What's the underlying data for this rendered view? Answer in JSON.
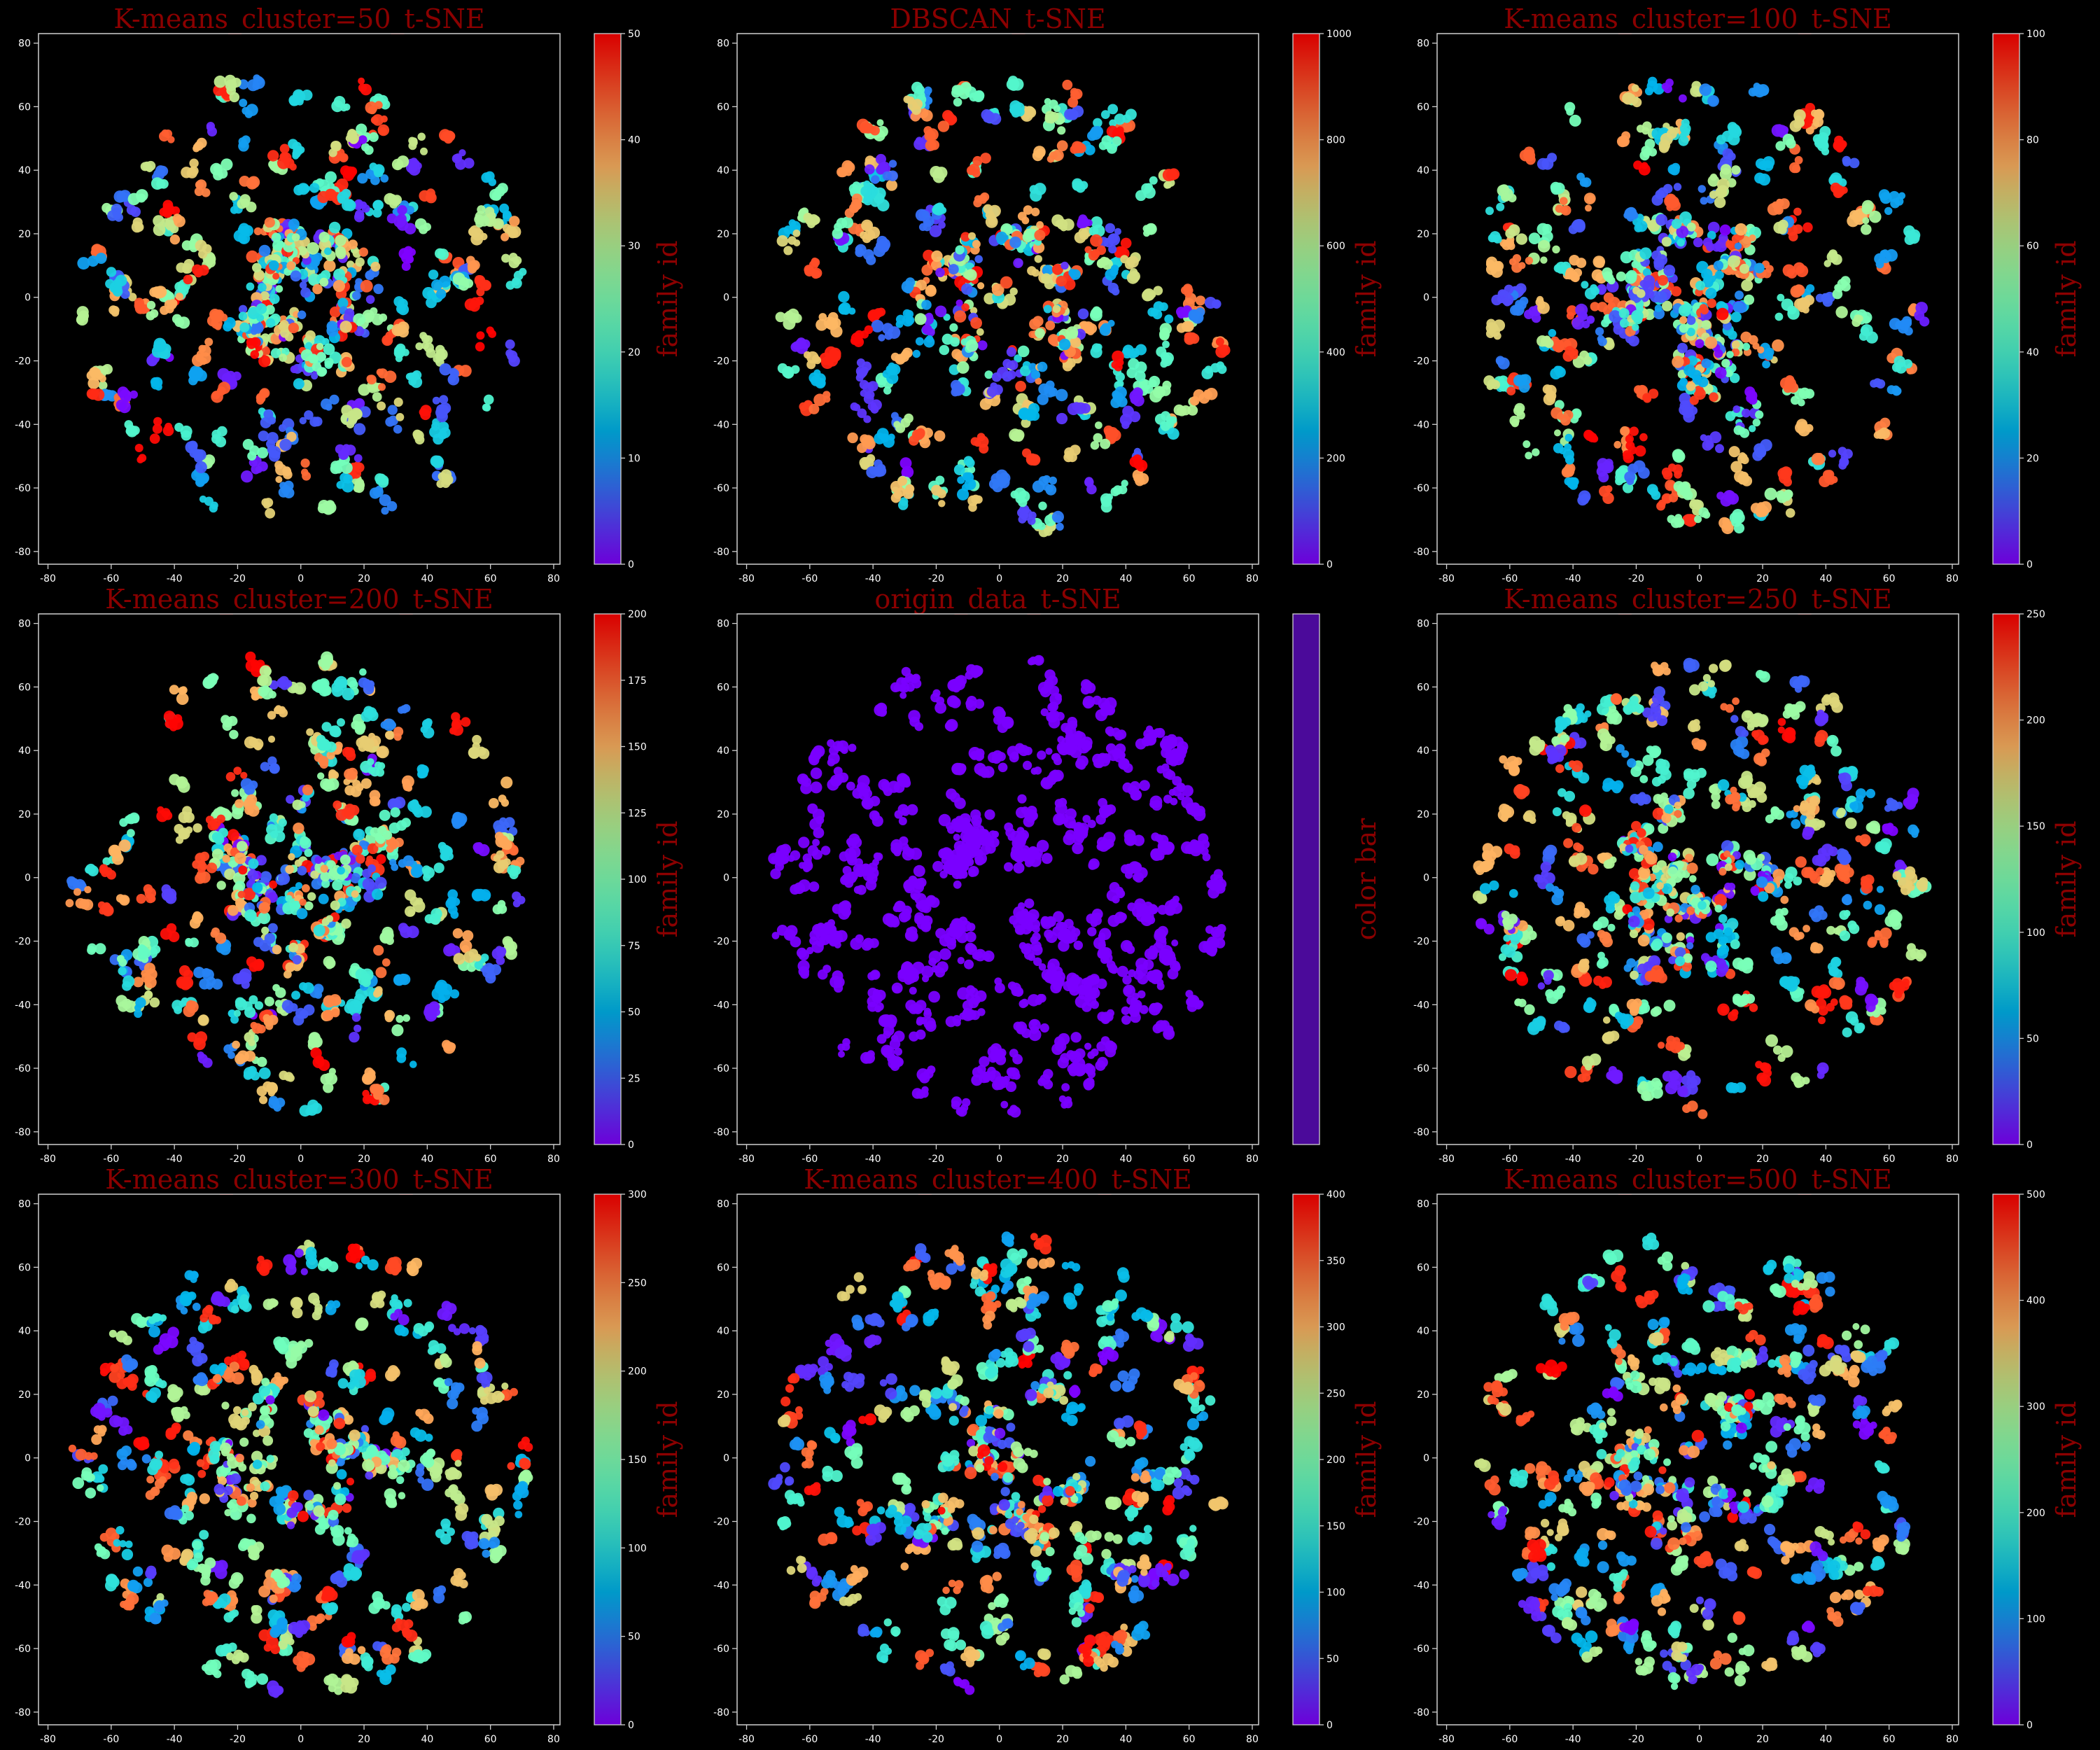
{
  "figure": {
    "background": "#000000",
    "axis_color": "#cfcfcf",
    "text_color": "#ffffff",
    "title_color": "#8b0000"
  },
  "chart_data": [
    {
      "type": "scatter",
      "title": "K-means_cluster=50_t-SNE",
      "xlim": [
        -83,
        82
      ],
      "ylim": [
        -84,
        83
      ],
      "x_ticks": [
        -80,
        -60,
        -40,
        -20,
        0,
        20,
        40,
        60,
        80
      ],
      "y_ticks": [
        -80,
        -60,
        -40,
        -20,
        0,
        20,
        40,
        60,
        80
      ],
      "colorbar": {
        "label": "family id",
        "min": 0,
        "max": 50,
        "ticks": [
          0,
          10,
          20,
          30,
          40,
          50
        ],
        "colormap": "rainbow"
      },
      "cluster_count": 50,
      "seed": 11
    },
    {
      "type": "scatter",
      "title": "DBSCAN_t-SNE",
      "xlim": [
        -83,
        82
      ],
      "ylim": [
        -84,
        83
      ],
      "x_ticks": [
        -80,
        -60,
        -40,
        -20,
        0,
        20,
        40,
        60,
        80
      ],
      "y_ticks": [
        -80,
        -60,
        -40,
        -20,
        0,
        20,
        40,
        60,
        80
      ],
      "colorbar": {
        "label": "family id",
        "min": 0,
        "max": 1000,
        "ticks": [
          0,
          200,
          400,
          600,
          800,
          1000
        ],
        "colormap": "rainbow"
      },
      "cluster_count": 1000,
      "seed": 23
    },
    {
      "type": "scatter",
      "title": "K-means_cluster=100_t-SNE",
      "xlim": [
        -83,
        82
      ],
      "ylim": [
        -84,
        83
      ],
      "x_ticks": [
        -80,
        -60,
        -40,
        -20,
        0,
        20,
        40,
        60,
        80
      ],
      "y_ticks": [
        -80,
        -60,
        -40,
        -20,
        0,
        20,
        40,
        60,
        80
      ],
      "colorbar": {
        "label": "family id",
        "min": 0,
        "max": 100,
        "ticks": [
          0,
          20,
          40,
          60,
          80,
          100
        ],
        "colormap": "rainbow"
      },
      "cluster_count": 100,
      "seed": 37
    },
    {
      "type": "scatter",
      "title": "K-means_cluster=200_t-SNE",
      "xlim": [
        -83,
        82
      ],
      "ylim": [
        -84,
        83
      ],
      "x_ticks": [
        -80,
        -60,
        -40,
        -20,
        0,
        20,
        40,
        60,
        80
      ],
      "y_ticks": [
        -80,
        -60,
        -40,
        -20,
        0,
        20,
        40,
        60,
        80
      ],
      "colorbar": {
        "label": "family id",
        "min": 0,
        "max": 200,
        "ticks": [
          0,
          25,
          50,
          75,
          100,
          125,
          150,
          175,
          200
        ],
        "colormap": "rainbow"
      },
      "cluster_count": 200,
      "seed": 41
    },
    {
      "type": "scatter",
      "title": "origin_data_t-SNE",
      "xlim": [
        -83,
        82
      ],
      "ylim": [
        -84,
        83
      ],
      "x_ticks": [
        -80,
        -60,
        -40,
        -20,
        0,
        20,
        40,
        60,
        80
      ],
      "y_ticks": [
        -80,
        -60,
        -40,
        -20,
        0,
        20,
        40,
        60,
        80
      ],
      "colorbar": {
        "label": "color bar",
        "min": 0,
        "max": 1,
        "ticks": [],
        "colormap": "single",
        "color": "#4b0a9a"
      },
      "cluster_count": 1,
      "point_color": "#7a00ff",
      "seed": 53
    },
    {
      "type": "scatter",
      "title": "K-means_cluster=250_t-SNE",
      "xlim": [
        -83,
        82
      ],
      "ylim": [
        -84,
        83
      ],
      "x_ticks": [
        -80,
        -60,
        -40,
        -20,
        0,
        20,
        40,
        60,
        80
      ],
      "y_ticks": [
        -80,
        -60,
        -40,
        -20,
        0,
        20,
        40,
        60,
        80
      ],
      "colorbar": {
        "label": "family id",
        "min": 0,
        "max": 250,
        "ticks": [
          0,
          50,
          100,
          150,
          200,
          250
        ],
        "colormap": "rainbow"
      },
      "cluster_count": 250,
      "seed": 67
    },
    {
      "type": "scatter",
      "title": "K-means_cluster=300_t-SNE",
      "xlim": [
        -83,
        82
      ],
      "ylim": [
        -84,
        83
      ],
      "x_ticks": [
        -80,
        -60,
        -40,
        -20,
        0,
        20,
        40,
        60,
        80
      ],
      "y_ticks": [
        -80,
        -60,
        -40,
        -20,
        0,
        20,
        40,
        60,
        80
      ],
      "colorbar": {
        "label": "family id",
        "min": 0,
        "max": 300,
        "ticks": [
          0,
          50,
          100,
          150,
          200,
          250,
          300
        ],
        "colormap": "rainbow"
      },
      "cluster_count": 300,
      "seed": 71
    },
    {
      "type": "scatter",
      "title": "K-means_cluster=400_t-SNE",
      "xlim": [
        -83,
        82
      ],
      "ylim": [
        -84,
        83
      ],
      "x_ticks": [
        -80,
        -60,
        -40,
        -20,
        0,
        20,
        40,
        60,
        80
      ],
      "y_ticks": [
        -80,
        -60,
        -40,
        -20,
        0,
        20,
        40,
        60,
        80
      ],
      "colorbar": {
        "label": "family id",
        "min": 0,
        "max": 400,
        "ticks": [
          0,
          50,
          100,
          150,
          200,
          250,
          300,
          350,
          400
        ],
        "colormap": "rainbow"
      },
      "cluster_count": 400,
      "seed": 83
    },
    {
      "type": "scatter",
      "title": "K-means_cluster=500_t-SNE",
      "xlim": [
        -83,
        82
      ],
      "ylim": [
        -84,
        83
      ],
      "x_ticks": [
        -80,
        -60,
        -40,
        -20,
        0,
        20,
        40,
        60,
        80
      ],
      "y_ticks": [
        -80,
        -60,
        -40,
        -20,
        0,
        20,
        40,
        60,
        80
      ],
      "colorbar": {
        "label": "family id",
        "min": 0,
        "max": 500,
        "ticks": [
          0,
          100,
          200,
          300,
          400,
          500
        ],
        "colormap": "rainbow"
      },
      "cluster_count": 500,
      "seed": 97
    }
  ]
}
